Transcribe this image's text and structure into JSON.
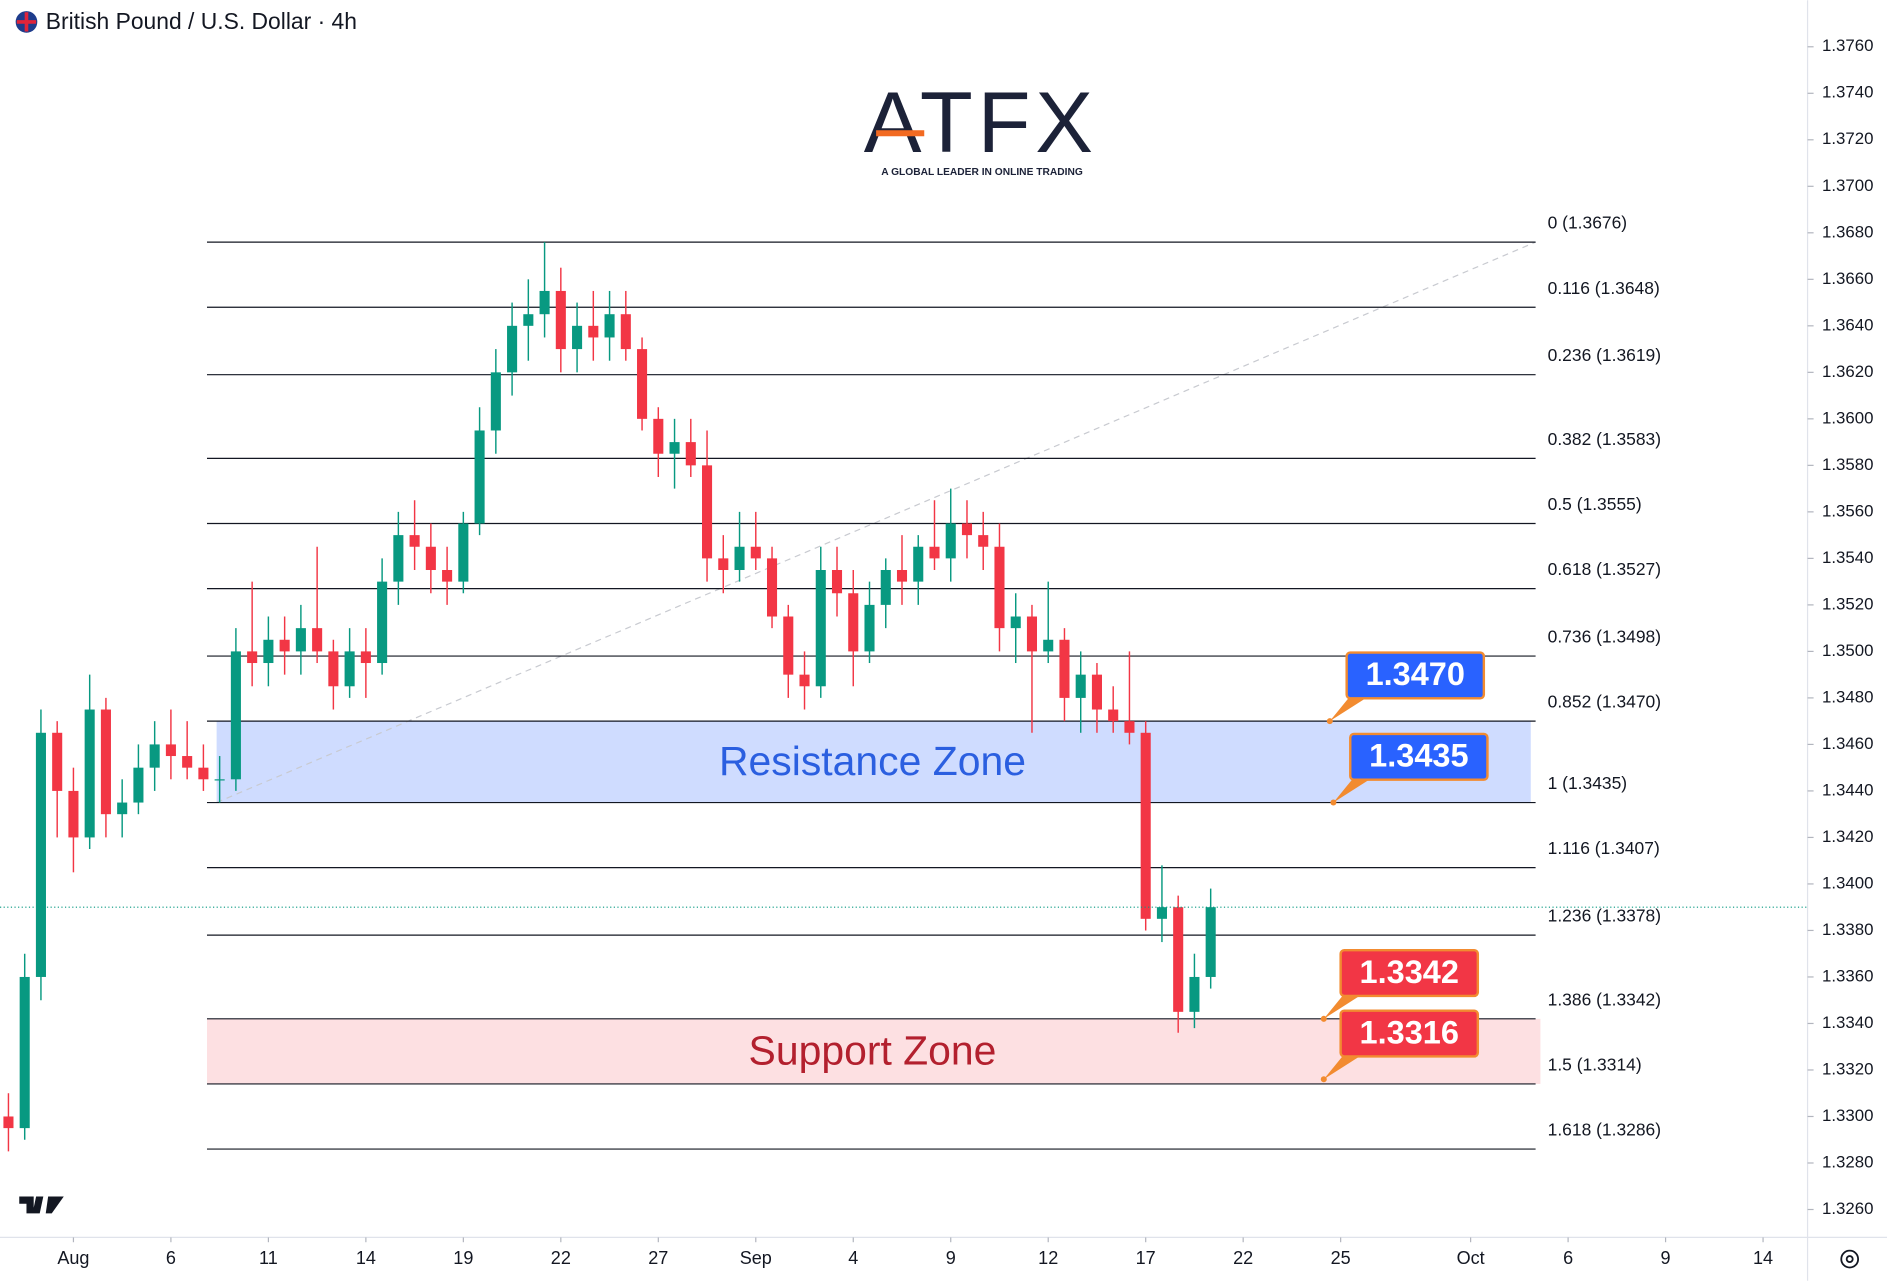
{
  "chart_data": {
    "type": "candlestick",
    "title": "British Pound / U.S. Dollar · 4h",
    "brand": "ATFX",
    "tagline": "A GLOBAL LEADER IN ONLINE TRADING",
    "xlim": [
      -2.26,
      53.37
    ],
    "ylim": [
      1.3248,
      1.378
    ],
    "xticks": [
      {
        "value": 0,
        "label": "Aug"
      },
      {
        "value": 3,
        "label": "6"
      },
      {
        "value": 6,
        "label": "11"
      },
      {
        "value": 9,
        "label": "14"
      },
      {
        "value": 12,
        "label": "19"
      },
      {
        "value": 15,
        "label": "22"
      },
      {
        "value": 18,
        "label": "27"
      },
      {
        "value": 21,
        "label": "Sep"
      },
      {
        "value": 24,
        "label": "4"
      },
      {
        "value": 27,
        "label": "9"
      },
      {
        "value": 30,
        "label": "12"
      },
      {
        "value": 33,
        "label": "17"
      },
      {
        "value": 36,
        "label": "22"
      },
      {
        "value": 39,
        "label": "25"
      },
      {
        "value": 43,
        "label": "Oct"
      },
      {
        "value": 46,
        "label": "6"
      },
      {
        "value": 49,
        "label": "9"
      },
      {
        "value": 52,
        "label": "14"
      }
    ],
    "yticks": [
      {
        "value": 1.376,
        "label": "1.3760"
      },
      {
        "value": 1.374,
        "label": "1.3740"
      },
      {
        "value": 1.372,
        "label": "1.3720"
      },
      {
        "value": 1.37,
        "label": "1.3700"
      },
      {
        "value": 1.368,
        "label": "1.3680"
      },
      {
        "value": 1.366,
        "label": "1.3660"
      },
      {
        "value": 1.364,
        "label": "1.3640"
      },
      {
        "value": 1.362,
        "label": "1.3620"
      },
      {
        "value": 1.36,
        "label": "1.3600"
      },
      {
        "value": 1.358,
        "label": "1.3580"
      },
      {
        "value": 1.356,
        "label": "1.3560"
      },
      {
        "value": 1.354,
        "label": "1.3540"
      },
      {
        "value": 1.352,
        "label": "1.3520"
      },
      {
        "value": 1.35,
        "label": "1.3500"
      },
      {
        "value": 1.348,
        "label": "1.3480"
      },
      {
        "value": 1.346,
        "label": "1.3460"
      },
      {
        "value": 1.344,
        "label": "1.3440"
      },
      {
        "value": 1.342,
        "label": "1.3420"
      },
      {
        "value": 1.34,
        "label": "1.3400"
      },
      {
        "value": 1.338,
        "label": "1.3380"
      },
      {
        "value": 1.336,
        "label": "1.3360"
      },
      {
        "value": 1.334,
        "label": "1.3340"
      },
      {
        "value": 1.332,
        "label": "1.3320"
      },
      {
        "value": 1.33,
        "label": "1.3300"
      },
      {
        "value": 1.328,
        "label": "1.3280"
      },
      {
        "value": 1.326,
        "label": "1.3260"
      }
    ],
    "up_color": "#089981",
    "down_color": "#f23645",
    "x": [
      -2,
      -1.5,
      -1,
      -0.5,
      0,
      0.5,
      1,
      1.5,
      2,
      2.5,
      3,
      3.5,
      4,
      4.5,
      5,
      5.5,
      6,
      6.5,
      7,
      7.5,
      8,
      8.5,
      9,
      9.5,
      10,
      10.5,
      11,
      11.5,
      12,
      12.5,
      13,
      13.5,
      14,
      14.5,
      15,
      15.5,
      16,
      16.5,
      17,
      17.5,
      18,
      18.5,
      19,
      19.5,
      20,
      20.5,
      21,
      21.5,
      22,
      22.5,
      23,
      23.5,
      24,
      24.5,
      25,
      25.5,
      26,
      26.5,
      27,
      27.5,
      28,
      28.5,
      29,
      29.5,
      30,
      30.5,
      31,
      31.5,
      32,
      32.5,
      33,
      33.5,
      34,
      34.5,
      35
    ],
    "open": [
      1.33,
      1.3295,
      1.336,
      1.3465,
      1.344,
      1.342,
      1.3475,
      1.343,
      1.3435,
      1.345,
      1.346,
      1.3455,
      1.345,
      1.3445,
      1.3445,
      1.35,
      1.3495,
      1.3505,
      1.35,
      1.351,
      1.35,
      1.3485,
      1.35,
      1.3495,
      1.353,
      1.355,
      1.3545,
      1.3535,
      1.353,
      1.3555,
      1.3595,
      1.362,
      1.364,
      1.3645,
      1.3655,
      1.363,
      1.364,
      1.3635,
      1.3645,
      1.363,
      1.36,
      1.3585,
      1.359,
      1.358,
      1.354,
      1.3535,
      1.3545,
      1.354,
      1.3515,
      1.349,
      1.3485,
      1.3535,
      1.3525,
      1.35,
      1.352,
      1.3535,
      1.353,
      1.3545,
      1.354,
      1.3555,
      1.355,
      1.3545,
      1.351,
      1.3515,
      1.35,
      1.3505,
      1.348,
      1.349,
      1.3475,
      1.347,
      1.3465,
      1.3385,
      1.339,
      1.3345,
      1.336
    ],
    "high": [
      1.331,
      1.337,
      1.3475,
      1.347,
      1.345,
      1.349,
      1.348,
      1.3445,
      1.346,
      1.347,
      1.3475,
      1.347,
      1.346,
      1.3455,
      1.351,
      1.353,
      1.3515,
      1.3515,
      1.352,
      1.3545,
      1.3505,
      1.351,
      1.351,
      1.354,
      1.356,
      1.3565,
      1.3555,
      1.3545,
      1.356,
      1.3605,
      1.363,
      1.365,
      1.366,
      1.3676,
      1.3665,
      1.365,
      1.3655,
      1.3655,
      1.3655,
      1.3635,
      1.3605,
      1.36,
      1.36,
      1.3595,
      1.355,
      1.356,
      1.356,
      1.3545,
      1.352,
      1.35,
      1.3545,
      1.3545,
      1.3535,
      1.353,
      1.354,
      1.355,
      1.355,
      1.3565,
      1.357,
      1.3565,
      1.356,
      1.3555,
      1.3525,
      1.352,
      1.353,
      1.351,
      1.35,
      1.3495,
      1.3485,
      1.35,
      1.347,
      1.3408,
      1.3395,
      1.337,
      1.3398
    ],
    "low": [
      1.3285,
      1.329,
      1.335,
      1.342,
      1.3405,
      1.3415,
      1.342,
      1.342,
      1.343,
      1.344,
      1.3445,
      1.3445,
      1.344,
      1.3435,
      1.344,
      1.3485,
      1.3485,
      1.349,
      1.349,
      1.3495,
      1.3475,
      1.348,
      1.348,
      1.349,
      1.352,
      1.3535,
      1.3525,
      1.352,
      1.3525,
      1.355,
      1.3585,
      1.361,
      1.3625,
      1.3635,
      1.362,
      1.362,
      1.3625,
      1.3625,
      1.3625,
      1.3595,
      1.3575,
      1.357,
      1.3575,
      1.353,
      1.3525,
      1.353,
      1.3535,
      1.351,
      1.348,
      1.3475,
      1.348,
      1.3515,
      1.3485,
      1.3495,
      1.351,
      1.352,
      1.352,
      1.3535,
      1.353,
      1.354,
      1.3535,
      1.35,
      1.3495,
      1.3465,
      1.3495,
      1.347,
      1.3465,
      1.3465,
      1.3465,
      1.346,
      1.338,
      1.3375,
      1.3336,
      1.3338,
      1.3355
    ],
    "close": [
      1.3295,
      1.336,
      1.3465,
      1.344,
      1.342,
      1.3475,
      1.343,
      1.3435,
      1.345,
      1.346,
      1.3455,
      1.345,
      1.3445,
      1.3445,
      1.35,
      1.3495,
      1.3505,
      1.35,
      1.351,
      1.35,
      1.3485,
      1.35,
      1.3495,
      1.353,
      1.355,
      1.3545,
      1.3535,
      1.353,
      1.3555,
      1.3595,
      1.362,
      1.364,
      1.3645,
      1.3655,
      1.363,
      1.364,
      1.3635,
      1.3645,
      1.363,
      1.36,
      1.3585,
      1.359,
      1.358,
      1.354,
      1.3535,
      1.3545,
      1.354,
      1.3515,
      1.349,
      1.3485,
      1.3535,
      1.3525,
      1.35,
      1.352,
      1.3535,
      1.353,
      1.3545,
      1.354,
      1.3555,
      1.355,
      1.3545,
      1.351,
      1.3515,
      1.35,
      1.3505,
      1.348,
      1.349,
      1.3475,
      1.347,
      1.3465,
      1.3385,
      1.339,
      1.3345,
      1.336,
      1.339
    ],
    "fib_levels": [
      {
        "value": 1.3676,
        "label": "0 (1.3676)"
      },
      {
        "value": 1.3648,
        "label": "0.116 (1.3648)"
      },
      {
        "value": 1.3619,
        "label": "0.236 (1.3619)"
      },
      {
        "value": 1.3583,
        "label": "0.382 (1.3583)"
      },
      {
        "value": 1.3555,
        "label": "0.5 (1.3555)"
      },
      {
        "value": 1.3527,
        "label": "0.618 (1.3527)"
      },
      {
        "value": 1.3498,
        "label": "0.736 (1.3498)"
      },
      {
        "value": 1.347,
        "label": "0.852 (1.3470)"
      },
      {
        "value": 1.3435,
        "label": "1 (1.3435)"
      },
      {
        "value": 1.3407,
        "label": "1.116 (1.3407)"
      },
      {
        "value": 1.3378,
        "label": "1.236 (1.3378)"
      },
      {
        "value": 1.3342,
        "label": "1.386 (1.3342)"
      },
      {
        "value": 1.3314,
        "label": "1.5 (1.3314)"
      },
      {
        "value": 1.3286,
        "label": "1.618 (1.3286)"
      }
    ],
    "zones": [
      {
        "label": "Resistance Zone",
        "range": [
          1.3435,
          1.347
        ],
        "color": "#cfdcff",
        "text_color": "#2b5fe0"
      },
      {
        "label": "Support Zone",
        "range": [
          1.3314,
          1.3342
        ],
        "color": "#fde0e2",
        "text_color": "#b3202e"
      }
    ],
    "callouts": [
      {
        "value": 1.347,
        "label": "1.3470",
        "color": "#2962ff"
      },
      {
        "value": 1.3435,
        "label": "1.3435",
        "color": "#2962ff"
      },
      {
        "value": 1.3342,
        "label": "1.3342",
        "color": "#f23645"
      },
      {
        "value": 1.3316,
        "label": "1.3316",
        "color": "#f23645"
      }
    ]
  }
}
